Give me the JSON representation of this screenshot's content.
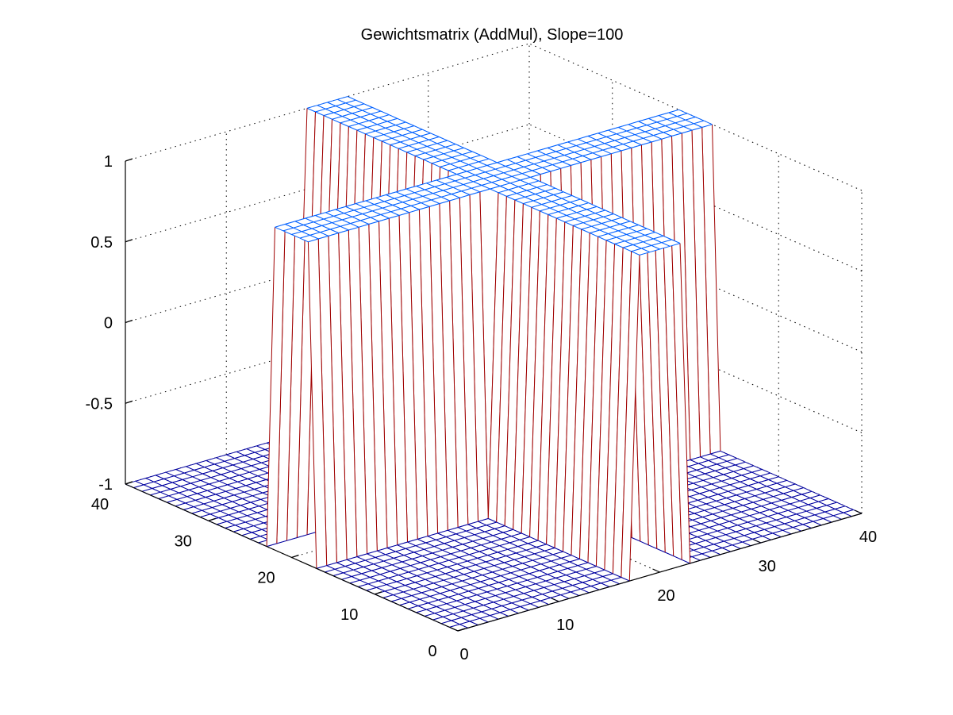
{
  "chart_data": {
    "type": "surface-mesh",
    "title": "Gewichtsmatrix (AddMul), Slope=100",
    "xlabel": "",
    "ylabel": "",
    "zlabel": "",
    "x_range": [
      0,
      40
    ],
    "y_range": [
      0,
      40
    ],
    "z_range": [
      -1,
      1
    ],
    "x_ticks": [
      "0",
      "10",
      "20",
      "30",
      "40"
    ],
    "y_ticks": [
      "0",
      "10",
      "20",
      "30",
      "40"
    ],
    "z_ticks": [
      "-1",
      "-0.5",
      "0",
      "0.5",
      "1"
    ],
    "grid": true,
    "grid_size": 40,
    "ridge_x_center": 20,
    "ridge_y_center": 20,
    "ridge_half_width": 2,
    "base_value": -1,
    "ridge_value": 1,
    "colormap": [
      "#0000a0",
      "#0060ff",
      "#a00000"
    ]
  }
}
